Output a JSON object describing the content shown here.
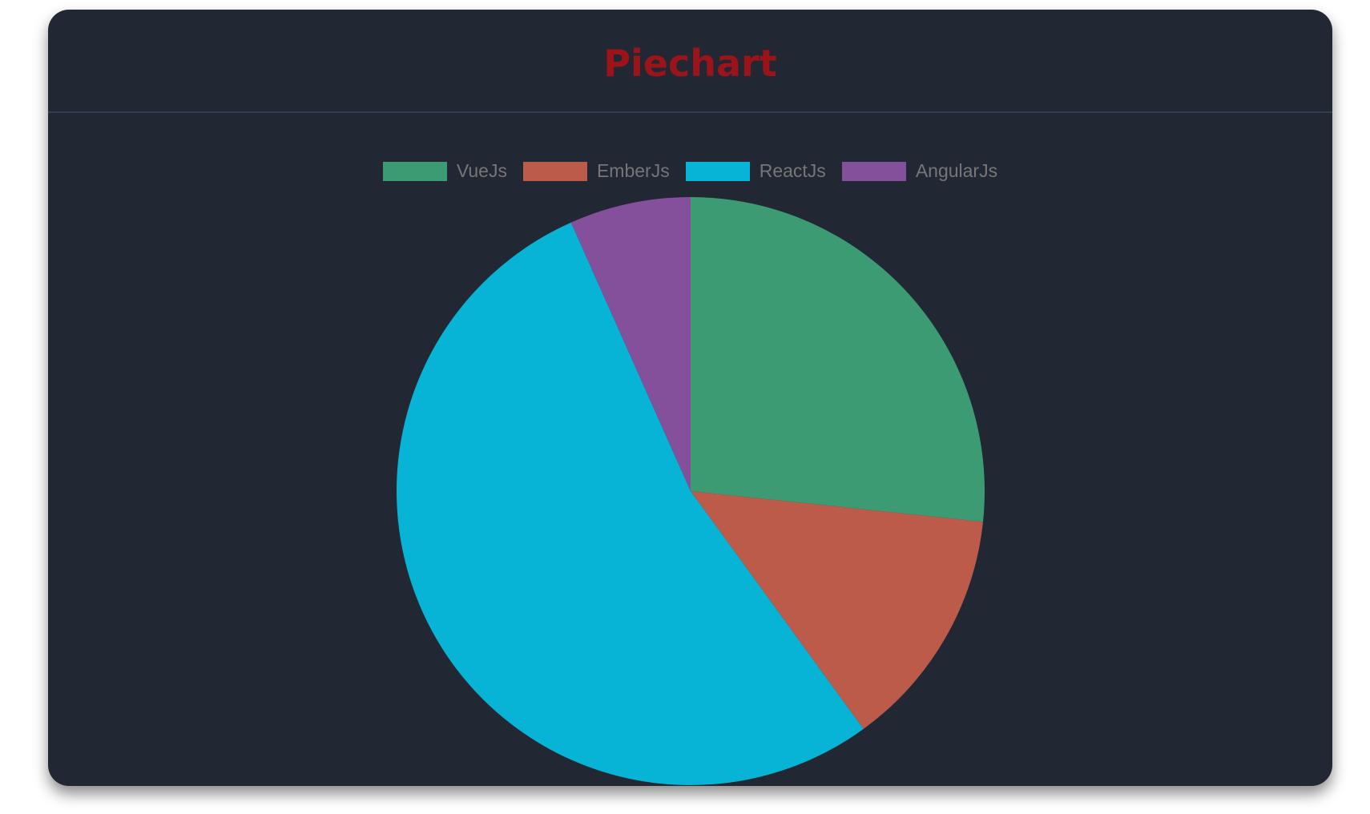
{
  "header": {
    "title": "Piechart",
    "title_color": "#9a141a"
  },
  "chart_data": {
    "type": "pie",
    "title": "Piechart",
    "categories": [
      "VueJs",
      "EmberJs",
      "ReactJs",
      "AngularJs"
    ],
    "values": [
      40,
      20,
      80,
      10
    ],
    "colors": [
      "#3d9b74",
      "#bd5b4b",
      "#07b4d6",
      "#84509c"
    ],
    "start_angle": "top",
    "direction": "clockwise",
    "legend": "top"
  }
}
